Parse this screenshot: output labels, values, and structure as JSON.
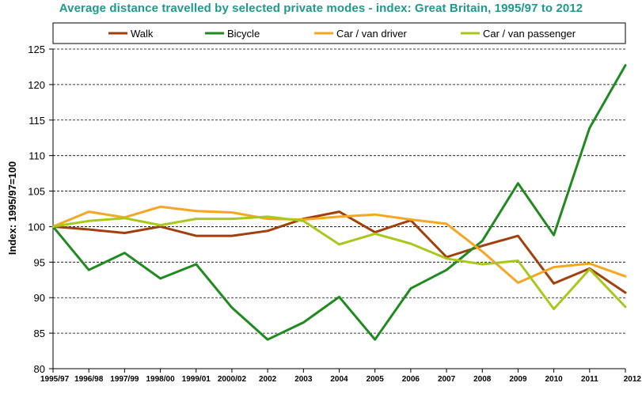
{
  "chart_data": {
    "type": "line",
    "title": "Average distance travelled by selected private modes - index: Great Britain, 1995/97  to 2012",
    "xlabel": "",
    "ylabel": "Index: 1995/97=100",
    "ylim": [
      80,
      125
    ],
    "yticks": [
      80,
      85,
      90,
      95,
      100,
      105,
      110,
      115,
      120,
      125
    ],
    "grid": "horizontal dashed",
    "legend_position": "top",
    "categories": [
      "1995/97",
      "1996/98",
      "1997/99",
      "1998/00",
      "1999/01",
      "2000/02",
      "2002",
      "2003",
      "2004",
      "2005",
      "2006",
      "2007",
      "2008",
      "2009",
      "2010",
      "2011",
      "2012"
    ],
    "series": [
      {
        "name": "Walk",
        "color": "#a0410d",
        "values": [
          100,
          99.6,
          99.1,
          100,
          98.7,
          98.7,
          99.4,
          101.1,
          102.1,
          99.2,
          100.9,
          95.7,
          97.3,
          98.7,
          92,
          94.1,
          90.7
        ]
      },
      {
        "name": "Bicycle",
        "color": "#1f8a1f",
        "values": [
          100,
          93.9,
          96.3,
          92.7,
          94.7,
          88.6,
          84.1,
          86.5,
          90.1,
          84.1,
          91.3,
          93.9,
          98,
          106.1,
          98.8,
          113.9,
          122.7
        ]
      },
      {
        "name": "Car / van driver",
        "color": "#f5a623",
        "values": [
          100,
          102.1,
          101.3,
          102.8,
          102.2,
          102,
          101.1,
          101,
          101.4,
          101.7,
          101,
          100.4,
          96.5,
          92.1,
          94.3,
          94.8,
          93
        ]
      },
      {
        "name": "Car / van passenger",
        "color": "#a8c81e",
        "values": [
          100,
          100.8,
          101.2,
          100.2,
          101.1,
          101.1,
          101.4,
          100.8,
          97.5,
          99,
          97.6,
          95.5,
          94.7,
          95.2,
          88.4,
          94,
          88.7
        ]
      }
    ]
  }
}
